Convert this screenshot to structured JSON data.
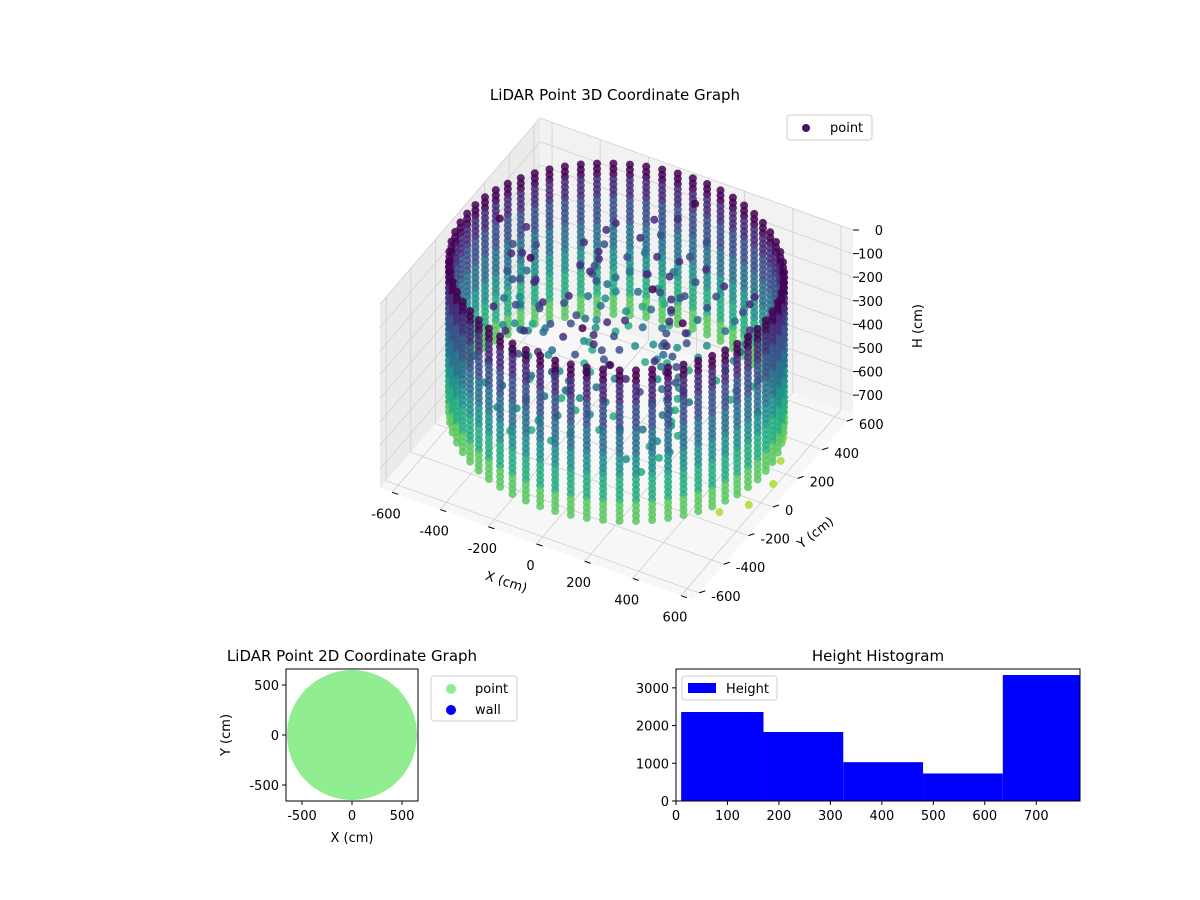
{
  "chart_data": [
    {
      "type": "scatter3d",
      "title": "LiDAR Point 3D Coordinate Graph",
      "xlabel": "X (cm)",
      "ylabel": "Y (cm)",
      "zlabel": "H (cm)",
      "xlim": [
        -650,
        650
      ],
      "ylim": [
        -650,
        650
      ],
      "zlim": [
        780,
        0
      ],
      "xticks": [
        -600,
        -400,
        -200,
        0,
        200,
        400,
        600
      ],
      "yticks": [
        -600,
        -400,
        -200,
        0,
        200,
        400,
        600
      ],
      "zticks": [
        0,
        100,
        200,
        300,
        400,
        500,
        600,
        700
      ],
      "grid": true,
      "legend": {
        "position": "top-right",
        "entries": [
          {
            "name": "point",
            "color": "#471365"
          }
        ]
      },
      "colormap": "viridis",
      "ring_radius_cm": 620,
      "ring_height_cm": [
        0,
        640
      ]
    },
    {
      "type": "scatter",
      "title": "LiDAR Point 2D Coordinate Graph",
      "xlabel": "X (cm)",
      "ylabel": "Y (cm)",
      "xlim": [
        -660,
        660
      ],
      "ylim": [
        -660,
        660
      ],
      "xticks": [
        -500,
        0,
        500
      ],
      "yticks": [
        -500,
        0,
        500
      ],
      "legend": {
        "position": "outside-right",
        "entries": [
          {
            "name": "point",
            "color": "#90ee90"
          },
          {
            "name": "wall",
            "color": "#0000ff"
          }
        ]
      },
      "series": [
        {
          "name": "point",
          "color": "#90ee90",
          "shape": "disc",
          "center": [
            0,
            0
          ],
          "radius": 650
        }
      ]
    },
    {
      "type": "bar",
      "title": "Height Histogram",
      "xlim": [
        0,
        785
      ],
      "ylim": [
        0,
        3500
      ],
      "xticks": [
        0,
        100,
        200,
        300,
        400,
        500,
        600,
        700
      ],
      "yticks": [
        0,
        1000,
        2000,
        3000
      ],
      "legend": {
        "position": "top-left",
        "entries": [
          {
            "name": "Height",
            "color": "#0000ff"
          }
        ]
      },
      "bin_edges": [
        10,
        170,
        325,
        480,
        635,
        785
      ],
      "series": [
        {
          "name": "Height",
          "color": "#0000ff",
          "values": [
            2360,
            1830,
            1030,
            730,
            3340
          ]
        }
      ]
    }
  ]
}
